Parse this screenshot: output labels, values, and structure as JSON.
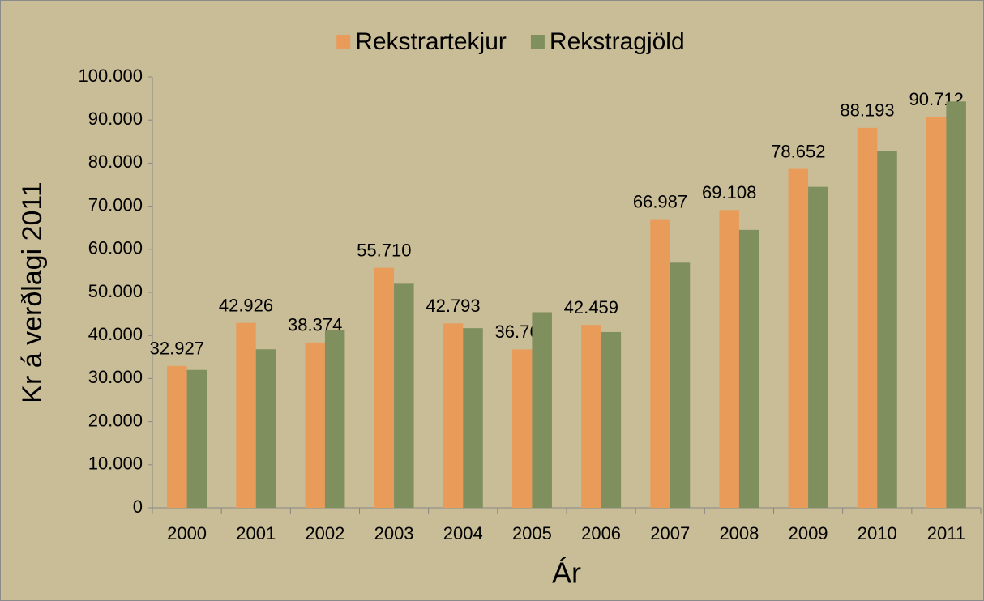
{
  "chart_data": {
    "type": "bar",
    "y_label": "Kr á verðlagi 2011",
    "x_label": "Ár",
    "categories": [
      "2000",
      "2001",
      "2002",
      "2003",
      "2004",
      "2005",
      "2006",
      "2007",
      "2008",
      "2009",
      "2010",
      "2011"
    ],
    "series": [
      {
        "name": "Rekstrartekjur",
        "color": "#e99b5a",
        "values": [
          32927,
          42926,
          38374,
          55710,
          42793,
          36762,
          42459,
          66987,
          69108,
          78652,
          88193,
          90712
        ],
        "value_labels": [
          "32.927",
          "42.926",
          "38.374",
          "55.710",
          "42.793",
          "36.762",
          "42.459",
          "66.987",
          "69.108",
          "78.652",
          "88.193",
          "90.712"
        ]
      },
      {
        "name": "Rekstragjöld",
        "color": "#7f8f5e",
        "values": [
          32000,
          36800,
          41200,
          52000,
          41700,
          45400,
          40800,
          56900,
          64500,
          74500,
          82800,
          94300
        ]
      }
    ],
    "ylim": [
      0,
      100000
    ],
    "yticks": [
      0,
      {
        "value": 10000,
        "label": "10.000"
      },
      {
        "value": 20000,
        "label": "20.000"
      },
      {
        "value": 30000,
        "label": "30.000"
      },
      {
        "value": 40000,
        "label": "40.000"
      },
      {
        "value": 50000,
        "label": "50.000"
      },
      {
        "value": 60000,
        "label": "60.000"
      },
      {
        "value": 70000,
        "label": "70.000"
      },
      {
        "value": 80000,
        "label": "80.000"
      },
      {
        "value": 90000,
        "label": "90.000"
      },
      {
        "value": 100000,
        "label": "100.000"
      }
    ],
    "legend": "top"
  }
}
